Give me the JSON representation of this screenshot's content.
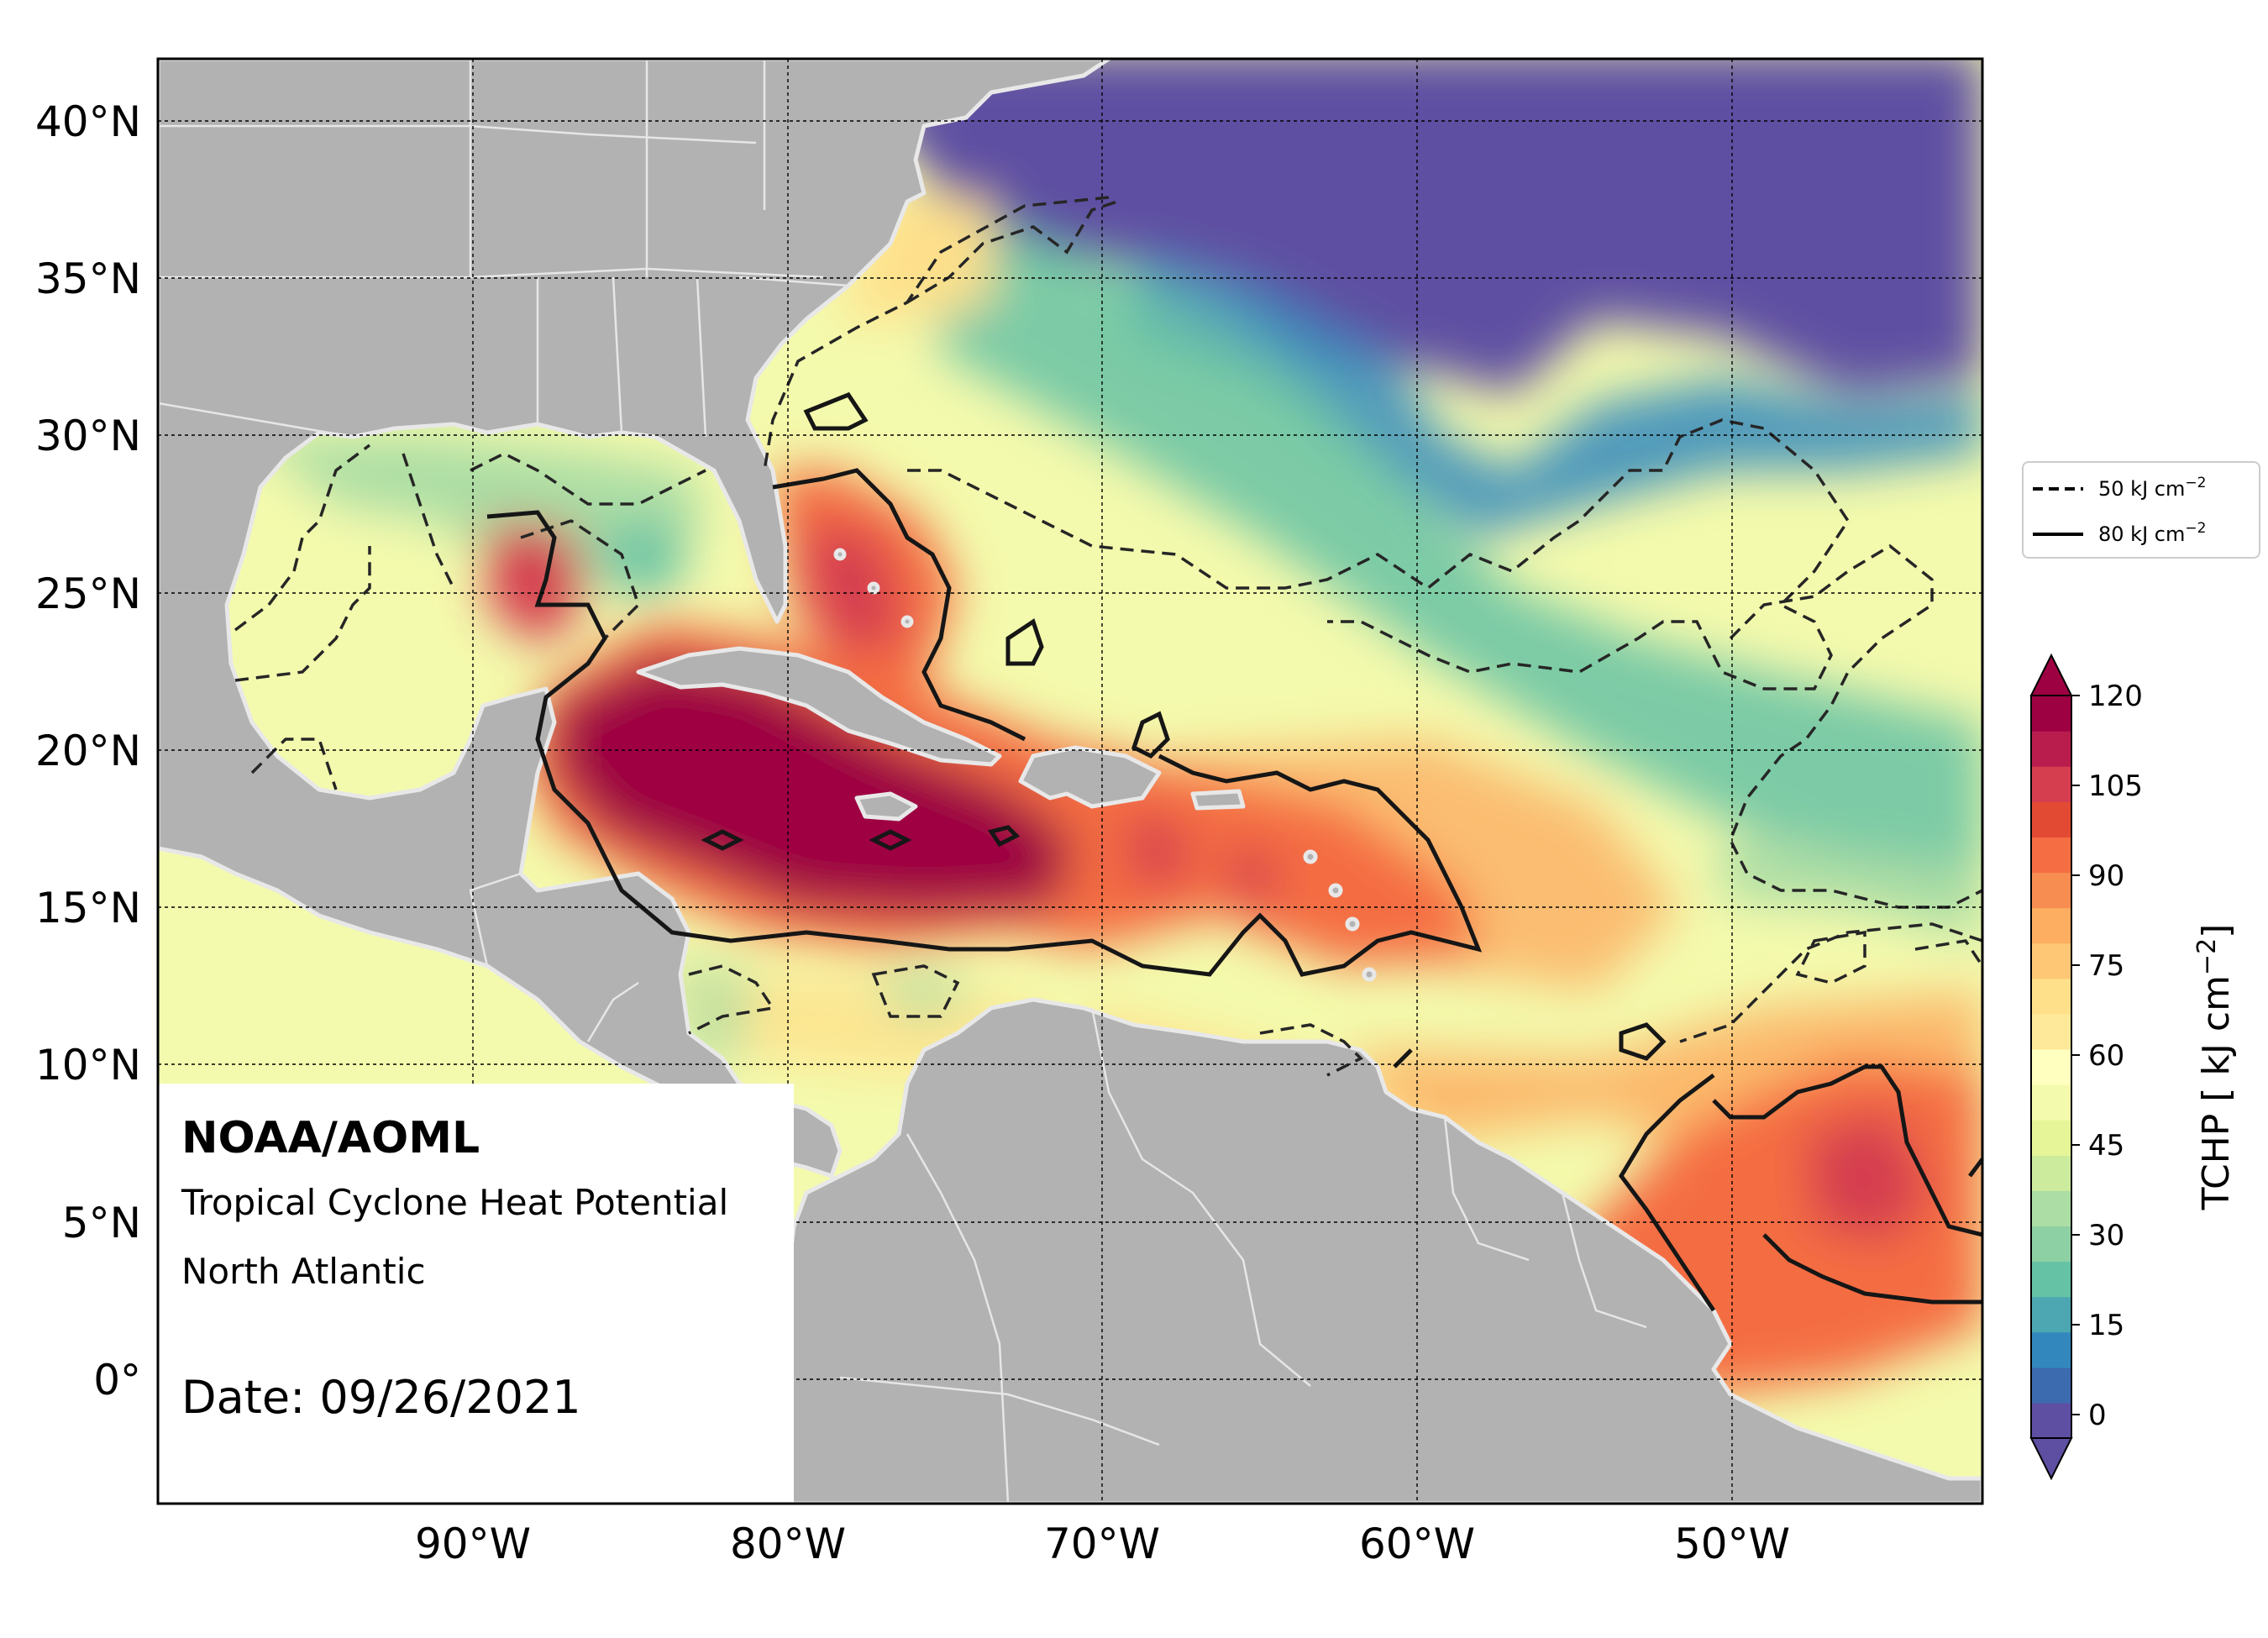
{
  "map": {
    "lat_labels": [
      "40°N",
      "35°N",
      "30°N",
      "25°N",
      "20°N",
      "15°N",
      "10°N",
      "5°N",
      "0°"
    ],
    "lon_labels": [
      "90°W",
      "80°W",
      "70°W",
      "60°W",
      "50°W"
    ],
    "land_color": "#b2b2b2",
    "coast_color": "#e8e8e8"
  },
  "legend": {
    "dashed_label": "50 kJ cm",
    "solid_label": "80 kJ cm",
    "exponent": "−2"
  },
  "colorbar": {
    "ticks": [
      "120",
      "105",
      "90",
      "75",
      "60",
      "45",
      "30",
      "15",
      "0"
    ],
    "label_main": "TCHP [ kJ cm",
    "label_exp": "−2",
    "label_end": "]",
    "colors": [
      "#5e4fa2",
      "#3d6bb0",
      "#3288bd",
      "#4ca7b2",
      "#66c2a5",
      "#8dd0a4",
      "#abdda4",
      "#cdeb9d",
      "#e6f598",
      "#f4faad",
      "#ffffbf",
      "#fee99a",
      "#fee08b",
      "#fdc776",
      "#fdae61",
      "#f88d52",
      "#f46d43",
      "#e34a33",
      "#d53e4f",
      "#b81d4e",
      "#9e0142"
    ]
  },
  "info": {
    "org": "NOAA/AOML",
    "product": "Tropical Cyclone Heat Potential",
    "region": "North Atlantic",
    "date": "Date: 09/26/2021"
  }
}
